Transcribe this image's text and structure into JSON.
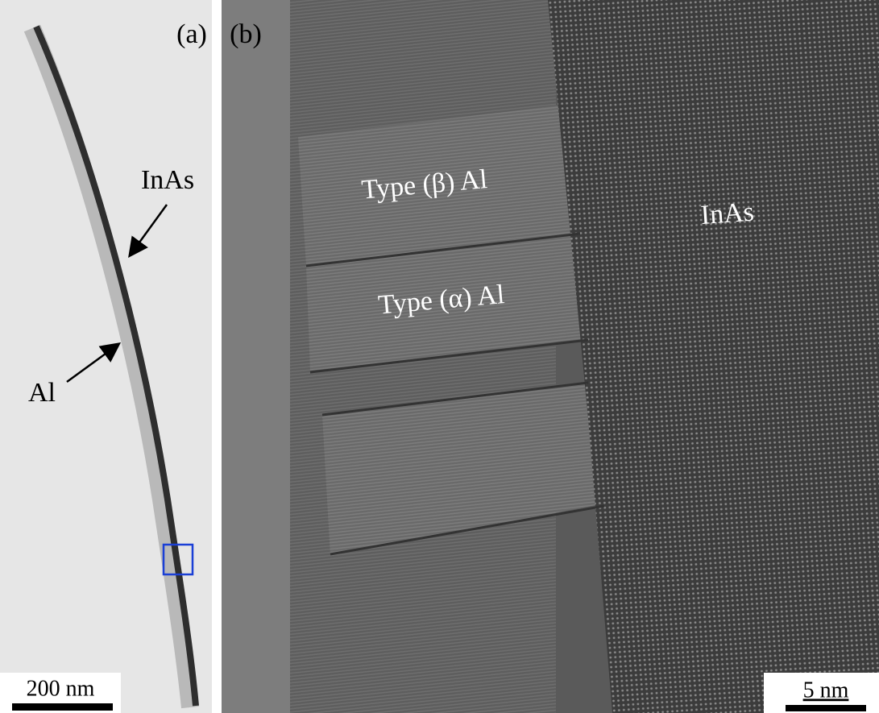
{
  "panels": [
    {
      "label": "(a)",
      "annotations": [
        "InAs",
        "Al"
      ],
      "scale_bar": "200 nm"
    },
    {
      "label": "(b)",
      "annotations": [
        "Type (β) Al",
        "Type (α) Al",
        "InAs"
      ],
      "scale_bar": "5 nm"
    }
  ]
}
